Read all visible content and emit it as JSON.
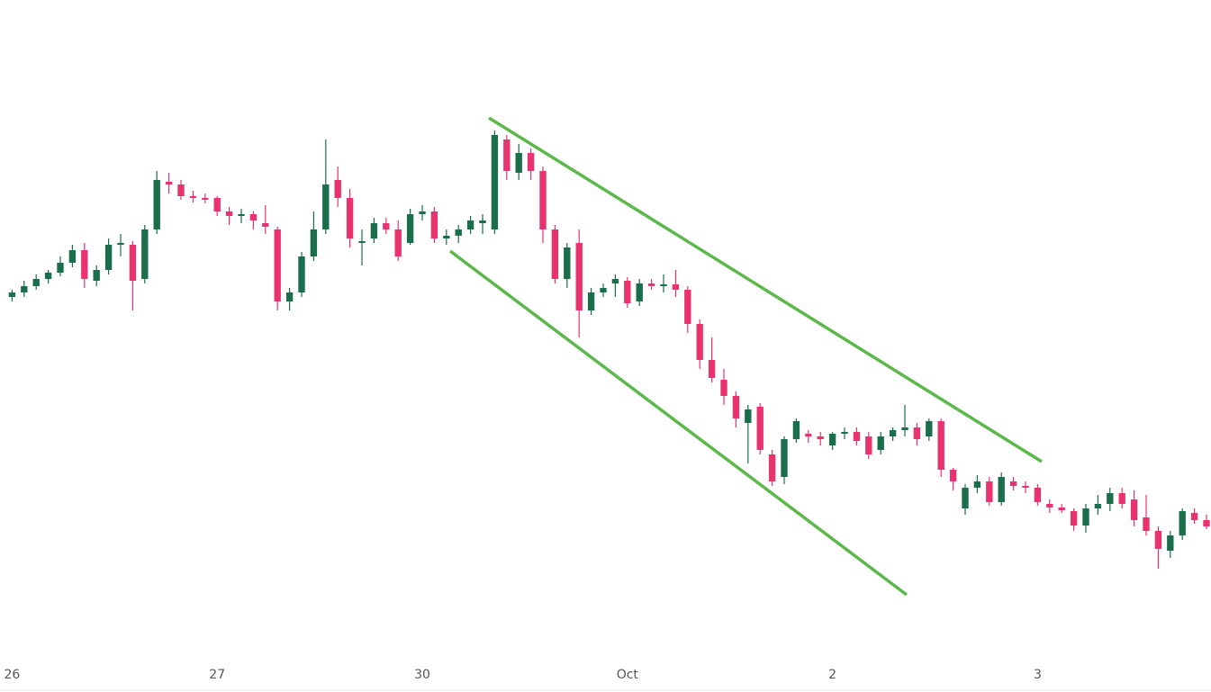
{
  "chart_data": {
    "type": "candlestick",
    "up_color": "#1b6e4b",
    "down_color": "#e8336f",
    "xlim": [
      -1,
      99
    ],
    "xticks": [
      {
        "value": 0,
        "label": "26"
      },
      {
        "value": 17,
        "label": "27"
      },
      {
        "value": 34,
        "label": "30"
      },
      {
        "value": 51,
        "label": "Oct"
      },
      {
        "value": 68,
        "label": "2"
      },
      {
        "value": 85,
        "label": "3"
      }
    ],
    "ylim": [
      31,
      800
    ],
    "open": [
      470,
      475,
      482,
      490,
      497,
      508,
      522,
      488,
      500,
      528,
      528,
      490,
      545,
      598,
      595,
      582,
      580,
      580,
      565,
      560,
      562,
      552,
      545,
      465,
      475,
      515,
      545,
      600,
      580,
      530,
      535,
      552,
      545,
      530,
      562,
      565,
      535,
      538,
      545,
      552,
      545,
      645,
      608,
      630,
      610,
      545,
      490,
      530,
      455,
      475,
      485,
      488,
      465,
      485,
      482,
      484,
      478,
      440,
      400,
      378,
      360,
      330,
      348,
      295,
      270,
      312,
      318,
      315,
      305,
      318,
      320,
      315,
      300,
      315,
      322,
      325,
      315,
      332,
      278,
      235,
      258,
      265,
      242,
      265,
      260,
      258,
      240,
      236,
      232,
      216,
      235,
      240,
      252,
      245,
      225,
      210,
      188,
      205,
      230,
      222
    ],
    "high": [
      478,
      488,
      495,
      500,
      515,
      528,
      530,
      505,
      535,
      540,
      532,
      550,
      610,
      608,
      600,
      588,
      585,
      582,
      570,
      568,
      565,
      572,
      548,
      480,
      520,
      565,
      645,
      615,
      590,
      545,
      558,
      558,
      555,
      568,
      572,
      570,
      545,
      550,
      560,
      562,
      655,
      650,
      640,
      635,
      615,
      550,
      530,
      545,
      480,
      485,
      495,
      492,
      490,
      490,
      495,
      500,
      482,
      445,
      425,
      390,
      365,
      350,
      352,
      300,
      315,
      335,
      322,
      320,
      320,
      325,
      325,
      320,
      320,
      325,
      350,
      330,
      335,
      335,
      280,
      262,
      272,
      270,
      275,
      270,
      265,
      262,
      245,
      240,
      235,
      240,
      250,
      258,
      258,
      255,
      250,
      215,
      210,
      235,
      235,
      228
    ],
    "low": [
      465,
      470,
      478,
      485,
      493,
      503,
      480,
      482,
      495,
      515,
      455,
      485,
      540,
      585,
      578,
      575,
      574,
      560,
      550,
      552,
      545,
      540,
      455,
      455,
      470,
      510,
      540,
      570,
      525,
      505,
      530,
      540,
      510,
      528,
      555,
      530,
      528,
      530,
      540,
      540,
      540,
      600,
      600,
      600,
      530,
      485,
      480,
      425,
      450,
      470,
      470,
      458,
      460,
      478,
      475,
      470,
      430,
      390,
      375,
      350,
      325,
      285,
      295,
      260,
      262,
      308,
      308,
      305,
      300,
      312,
      305,
      290,
      295,
      310,
      315,
      305,
      310,
      270,
      255,
      228,
      252,
      238,
      238,
      255,
      252,
      238,
      230,
      230,
      210,
      208,
      228,
      232,
      235,
      215,
      205,
      168,
      180,
      200,
      218,
      212
    ],
    "close": [
      475,
      482,
      490,
      497,
      508,
      522,
      490,
      500,
      528,
      530,
      488,
      545,
      600,
      595,
      582,
      580,
      578,
      565,
      560,
      562,
      555,
      548,
      465,
      475,
      515,
      545,
      595,
      580,
      535,
      532,
      552,
      545,
      515,
      562,
      565,
      535,
      538,
      545,
      555,
      555,
      650,
      610,
      630,
      610,
      545,
      490,
      525,
      455,
      475,
      480,
      490,
      463,
      485,
      482,
      484,
      478,
      440,
      400,
      380,
      360,
      335,
      345,
      300,
      265,
      312,
      332,
      315,
      312,
      318,
      320,
      310,
      295,
      315,
      322,
      325,
      312,
      332,
      278,
      265,
      258,
      265,
      242,
      270,
      260,
      258,
      242,
      236,
      233,
      216,
      235,
      240,
      252,
      240,
      222,
      210,
      190,
      205,
      232,
      222,
      215
    ]
  }
}
